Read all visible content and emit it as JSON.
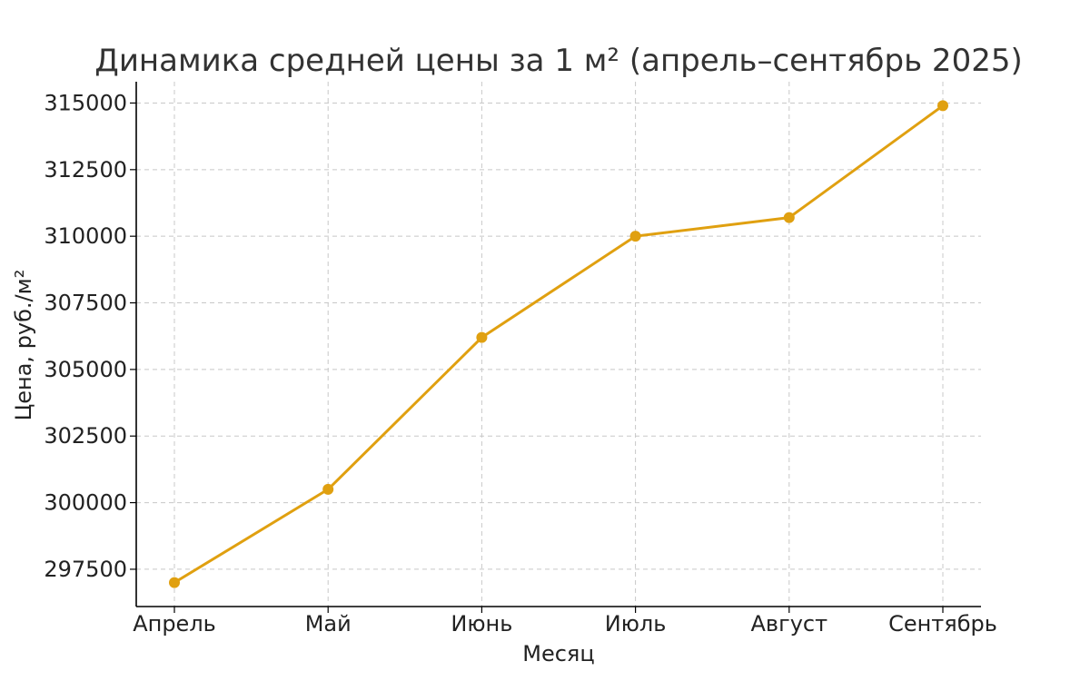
{
  "chart_data": {
    "type": "line",
    "title": "Динамика средней цены за 1 м² (апрель–сентябрь 2025)",
    "xlabel": "Месяц",
    "ylabel": "Цена, руб./м²",
    "categories": [
      "Апрель",
      "Май",
      "Июнь",
      "Июль",
      "Август",
      "Сентябрь"
    ],
    "series": [
      {
        "values": [
          297000,
          300500,
          306200,
          310000,
          310700,
          314900
        ],
        "color": "#E0A010"
      }
    ],
    "yticks": [
      297500,
      300000,
      302500,
      305000,
      307500,
      310000,
      312500,
      315000
    ],
    "ylim": [
      296100,
      315800
    ],
    "grid": true,
    "marker": "circle"
  }
}
